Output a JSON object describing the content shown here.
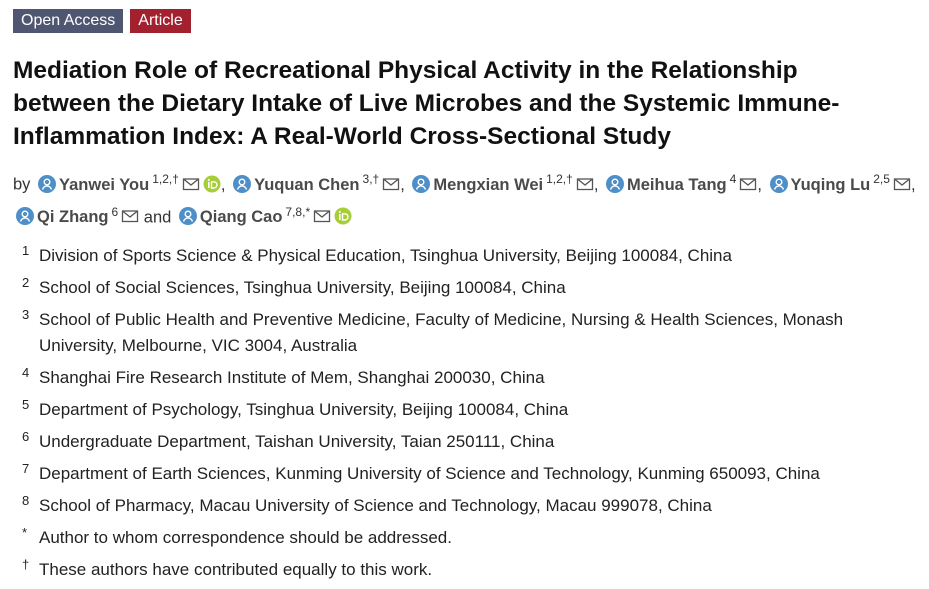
{
  "badges": [
    "Open Access",
    "Article"
  ],
  "title_lines": [
    "Mediation Role of Recreational Physical Activity in the Relationship",
    "between the Dietary Intake of Live Microbes and the Systemic Immune-",
    "Inflammation Index: A Real-World Cross-Sectional Study"
  ],
  "byline": {
    "prefix": "by",
    "separator": ",",
    "conjunction": "and"
  },
  "authors": [
    {
      "name": "Yanwei You",
      "sup": "1,2,†",
      "orcid": true
    },
    {
      "name": "Yuquan Chen",
      "sup": "3,†",
      "orcid": false
    },
    {
      "name": "Mengxian Wei",
      "sup": "1,2,†",
      "orcid": false
    },
    {
      "name": "Meihua Tang",
      "sup": "4",
      "orcid": false
    },
    {
      "name": "Yuqing Lu",
      "sup": "2,5",
      "orcid": false
    },
    {
      "name": "Qi Zhang",
      "sup": "6",
      "orcid": false
    },
    {
      "name": "Qiang Cao",
      "sup": "7,8,*",
      "orcid": true
    }
  ],
  "affiliations": [
    {
      "marker": "1",
      "text": "Division of Sports Science & Physical Education, Tsinghua University, Beijing 100084, China"
    },
    {
      "marker": "2",
      "text": "School of Social Sciences, Tsinghua University, Beijing 100084, China"
    },
    {
      "marker": "3",
      "text": "School of Public Health and Preventive Medicine, Faculty of Medicine, Nursing & Health Sciences, Monash University, Melbourne, VIC 3004, Australia"
    },
    {
      "marker": "4",
      "text": "Shanghai Fire Research Institute of Mem, Shanghai 200030, China"
    },
    {
      "marker": "5",
      "text": "Department of Psychology, Tsinghua University, Beijing 100084, China"
    },
    {
      "marker": "6",
      "text": "Undergraduate Department, Taishan University, Taian 250111, China"
    },
    {
      "marker": "7",
      "text": "Department of Earth Sciences, Kunming University of Science and Technology, Kunming 650093, China"
    },
    {
      "marker": "8",
      "text": "School of Pharmacy, Macau University of Science and Technology, Macau 999078, China"
    },
    {
      "marker": "*",
      "text": "Author to whom correspondence should be addressed."
    },
    {
      "marker": "†",
      "text": "These authors have contributed equally to this work."
    }
  ]
}
